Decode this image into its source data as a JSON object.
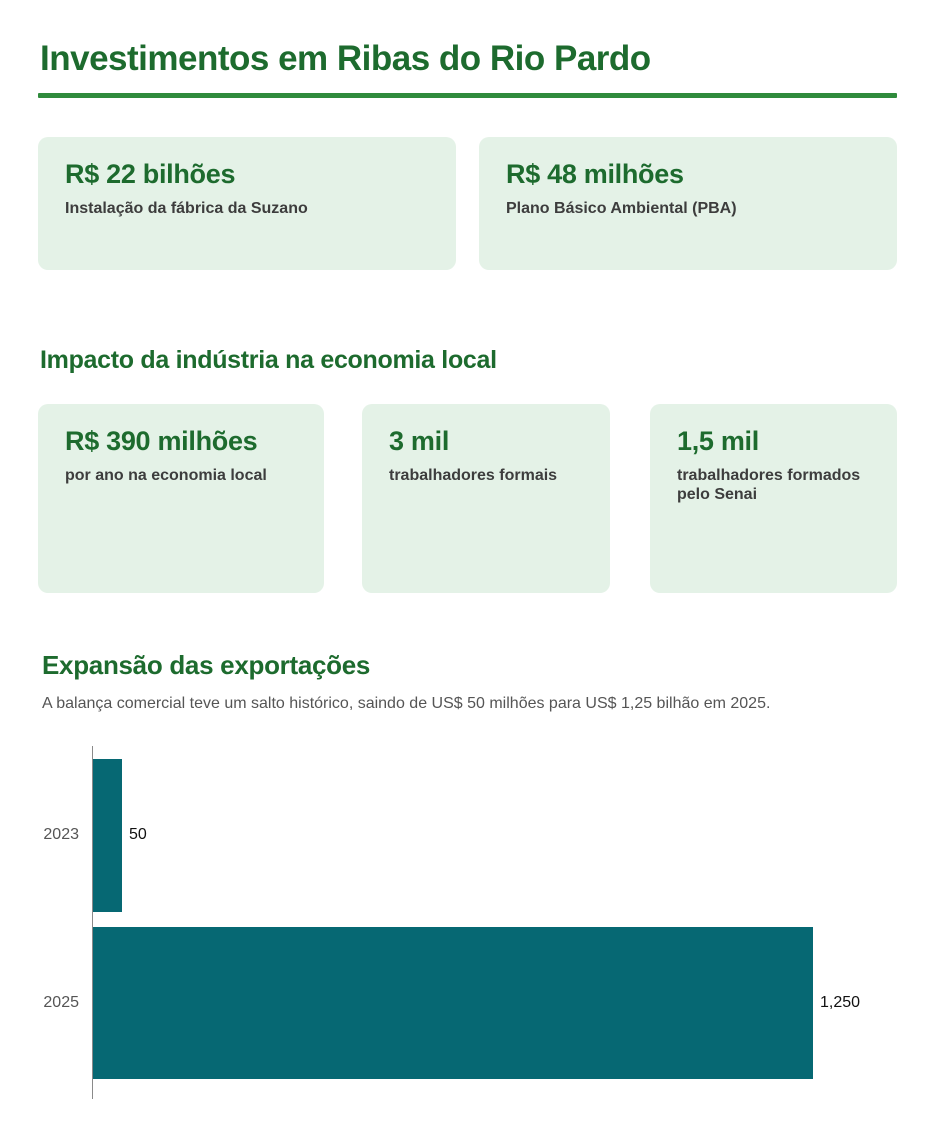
{
  "page": {
    "title": "Investimentos em Ribas do Rio Pardo"
  },
  "investment_cards": [
    {
      "value": "R$ 22 bilhões",
      "label": "Instalação da fábrica da Suzano"
    },
    {
      "value": "R$ 48 milhões",
      "label": "Plano Básico Ambiental (PBA)"
    }
  ],
  "impact_section": {
    "heading": "Impacto da indústria na economia local",
    "cards": [
      {
        "value": "R$ 390 milhões",
        "label": "por ano na economia local"
      },
      {
        "value": "3 mil",
        "label": "trabalhadores formais"
      },
      {
        "value": "1,5 mil",
        "label": "trabalhadores formados pelo Senai"
      }
    ]
  },
  "exports_section": {
    "heading": "Expansão das exportações",
    "subtitle": "A balança comercial teve um salto histórico, saindo de US$ 50 milhões para US$ 1,25 bilhão em 2025."
  },
  "chart_data": {
    "type": "bar",
    "orientation": "horizontal",
    "title": "Expansão das exportações",
    "categories": [
      "2023",
      "2025"
    ],
    "values": [
      50,
      1250
    ],
    "value_labels": [
      "50",
      "1,250"
    ],
    "xlim": [
      0,
      1250
    ],
    "grid": false,
    "legend": false,
    "bar_color": "#066873"
  },
  "colors": {
    "heading_green": "#1d6b2e",
    "divider_green": "#2f8b3c",
    "card_background": "#e4f2e7",
    "card_label_text": "#3d3d3d",
    "bar_teal": "#066873",
    "muted_text": "#555555"
  }
}
